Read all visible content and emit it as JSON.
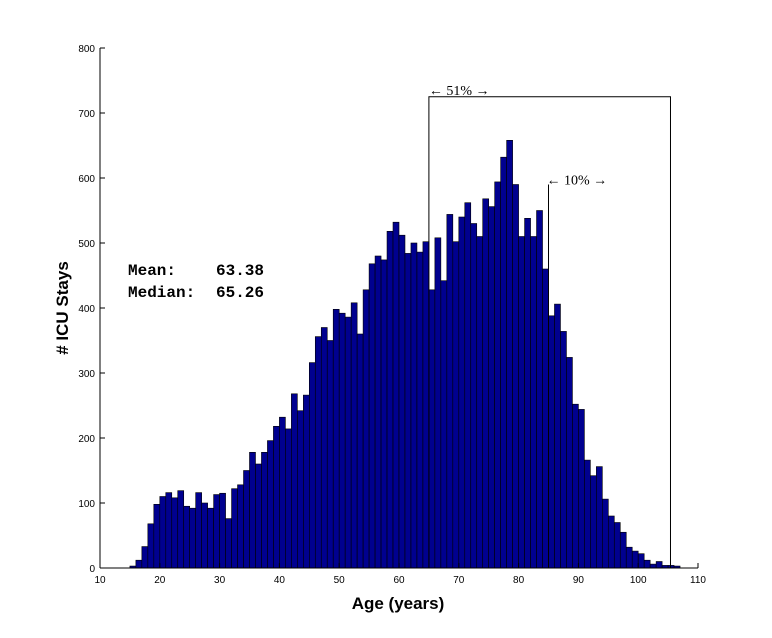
{
  "chart_data": {
    "type": "bar",
    "xlabel": "Age (years)",
    "ylabel": "# ICU Stays",
    "xlim": [
      10,
      110
    ],
    "ylim": [
      0,
      800
    ],
    "xticks": [
      10,
      20,
      30,
      40,
      50,
      60,
      70,
      80,
      90,
      100,
      110
    ],
    "yticks": [
      0,
      100,
      200,
      300,
      400,
      500,
      600,
      700,
      800
    ],
    "grid": false,
    "bar_color": "#00008f",
    "bin_start": 15,
    "bin_width": 1,
    "values": [
      3,
      12,
      33,
      68,
      98,
      110,
      116,
      108,
      119,
      95,
      92,
      116,
      100,
      92,
      113,
      115,
      76,
      122,
      128,
      150,
      178,
      160,
      178,
      196,
      218,
      232,
      214,
      268,
      242,
      266,
      316,
      356,
      370,
      350,
      398,
      392,
      386,
      408,
      360,
      428,
      468,
      480,
      474,
      518,
      532,
      512,
      484,
      500,
      486,
      502,
      428,
      508,
      442,
      544,
      502,
      540,
      562,
      530,
      510,
      568,
      556,
      594,
      632,
      658,
      590,
      510,
      538,
      510,
      550,
      460,
      388,
      406,
      364,
      324,
      252,
      244,
      166,
      142,
      156,
      106,
      80,
      70,
      55,
      32,
      26,
      22,
      12,
      6,
      10,
      4,
      4,
      3
    ],
    "annotations": [
      {
        "text": "← 51% →",
        "x_start": 65,
        "x_end": 105.4,
        "y": 725
      },
      {
        "text": "← 10% →",
        "x_start": 85,
        "x_end": 105.4,
        "y": 590
      }
    ],
    "stats": {
      "mean_label": "Mean:",
      "mean_value": "63.38",
      "median_label": "Median:",
      "median_value": "65.26"
    }
  }
}
